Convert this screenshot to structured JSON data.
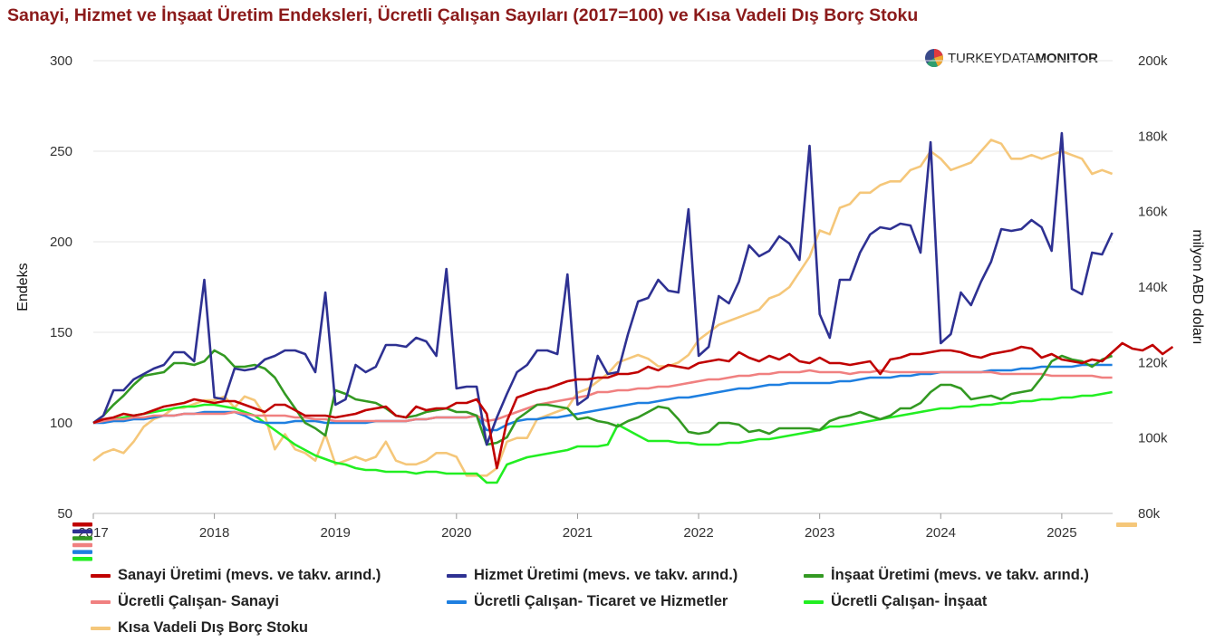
{
  "title": "Sanayi, Hizmet ve İnşaat Üretim Endeksleri, Ücretli Çalışan Sayıları (2017=100) ve Kısa Vadeli Dış Borç Stoku",
  "brand": {
    "part1": "TURKEYDATA",
    "part2": "MONITOR",
    "logo": "pie-logo-icon"
  },
  "chart_data": {
    "type": "line",
    "ylabel": "Endeks",
    "y2label": "milyon ABD doları",
    "ylim": [
      50,
      300
    ],
    "y2lim": [
      80000,
      200000
    ],
    "yticks": [
      "300",
      "250",
      "200",
      "150",
      "100",
      "50"
    ],
    "yticks_values": [
      300,
      250,
      200,
      150,
      100,
      50
    ],
    "y2ticks": [
      "200k",
      "180k",
      "160k",
      "140k",
      "120k",
      "100k",
      "80k"
    ],
    "y2ticks_values": [
      200000,
      180000,
      160000,
      140000,
      120000,
      100000,
      80000
    ],
    "xticks": [
      "2017",
      "2018",
      "2019",
      "2020",
      "2021",
      "2022",
      "2023",
      "2024",
      "2025"
    ],
    "xticks_values": [
      2017,
      2018,
      2019,
      2020,
      2021,
      2022,
      2023,
      2024,
      2025
    ],
    "xlim": [
      2017,
      2025.42
    ],
    "grid": true,
    "legend_position": "bottom",
    "series": [
      {
        "name": "Sanayi Üretimi (mevs. ve takv. arınd.)",
        "color": "#c00000",
        "axis": "left",
        "start": 2017,
        "step_months": 1,
        "values": [
          100,
          102,
          103,
          105,
          104,
          105,
          107,
          109,
          110,
          111,
          113,
          112,
          111,
          112,
          112,
          110,
          108,
          106,
          110,
          110,
          107,
          104,
          104,
          104,
          103,
          104,
          105,
          107,
          108,
          109,
          104,
          103,
          109,
          107,
          108,
          108,
          111,
          111,
          113,
          105,
          75,
          101,
          114,
          116,
          118,
          119,
          121,
          123,
          124,
          124,
          125,
          125,
          127,
          127,
          128,
          131,
          129,
          132,
          131,
          130,
          133,
          134,
          135,
          134,
          139,
          136,
          134,
          137,
          135,
          138,
          134,
          133,
          136,
          133,
          133,
          132,
          133,
          134,
          127,
          135,
          136,
          138,
          138,
          139,
          140,
          140,
          139,
          137,
          136,
          138,
          139,
          140,
          142,
          141,
          136,
          138,
          135,
          134,
          133,
          135,
          134,
          139,
          144,
          141,
          140,
          143,
          138,
          142
        ]
      },
      {
        "name": "Hizmet Üretimi (mevs. ve takv. arınd.)",
        "color": "#2e3192",
        "axis": "left",
        "start": 2017,
        "step_months": 1,
        "values": [
          100,
          104,
          118,
          118,
          124,
          127,
          130,
          132,
          139,
          139,
          134,
          179,
          114,
          113,
          130,
          129,
          130,
          135,
          137,
          140,
          140,
          138,
          128,
          172,
          110,
          113,
          132,
          128,
          131,
          143,
          143,
          142,
          147,
          145,
          137,
          185,
          119,
          120,
          120,
          88,
          103,
          116,
          128,
          132,
          140,
          140,
          138,
          182,
          110,
          114,
          137,
          127,
          128,
          149,
          167,
          169,
          179,
          173,
          172,
          218,
          137,
          142,
          170,
          166,
          178,
          198,
          192,
          195,
          203,
          199,
          190,
          253,
          160,
          147,
          179,
          179,
          194,
          204,
          208,
          207,
          210,
          209,
          194,
          255,
          144,
          149,
          172,
          165,
          178,
          189,
          207,
          206,
          207,
          212,
          208,
          195,
          260,
          174,
          171,
          194,
          193,
          205
        ]
      },
      {
        "name": "İnşaat Üretimi (mevs. ve takv. arınd.)",
        "color": "#339922",
        "axis": "left",
        "start": 2017,
        "step_months": 1,
        "values": [
          100,
          104,
          110,
          115,
          121,
          126,
          127,
          128,
          133,
          133,
          132,
          134,
          140,
          137,
          131,
          131,
          132,
          130,
          125,
          116,
          108,
          100,
          97,
          93,
          118,
          116,
          113,
          112,
          111,
          108,
          104,
          103,
          104,
          106,
          107,
          108,
          106,
          106,
          104,
          88,
          89,
          92,
          102,
          106,
          110,
          110,
          109,
          108,
          102,
          103,
          101,
          100,
          98,
          101,
          103,
          106,
          109,
          108,
          102,
          95,
          94,
          95,
          100,
          100,
          99,
          95,
          96,
          94,
          97,
          97,
          97,
          97,
          96,
          101,
          103,
          104,
          106,
          104,
          102,
          104,
          108,
          108,
          111,
          117,
          121,
          121,
          119,
          113,
          114,
          115,
          113,
          116,
          117,
          118,
          125,
          134,
          137,
          135,
          134,
          131,
          135,
          137
        ]
      },
      {
        "name": "Ücretli Çalışan- Sanayi",
        "color": "#f08080",
        "axis": "left",
        "start": 2017,
        "step_months": 1,
        "values": [
          100,
          101,
          102,
          102,
          103,
          103,
          104,
          104,
          104,
          105,
          105,
          105,
          105,
          105,
          106,
          105,
          104,
          104,
          104,
          104,
          103,
          103,
          102,
          102,
          101,
          101,
          101,
          101,
          101,
          101,
          101,
          101,
          102,
          102,
          103,
          103,
          103,
          103,
          104,
          101,
          102,
          104,
          106,
          108,
          110,
          111,
          112,
          113,
          114,
          115,
          117,
          117,
          118,
          118,
          119,
          119,
          120,
          120,
          121,
          122,
          123,
          124,
          124,
          125,
          126,
          126,
          127,
          127,
          128,
          128,
          128,
          129,
          128,
          128,
          128,
          127,
          128,
          128,
          129,
          128,
          128,
          128,
          128,
          128,
          128,
          128,
          128,
          128,
          128,
          128,
          127,
          127,
          127,
          127,
          127,
          126,
          126,
          126,
          126,
          126,
          125,
          125
        ]
      },
      {
        "name": "Ücretli Çalışan- Ticaret ve Hizmetler",
        "color": "#1e7fe0",
        "axis": "left",
        "start": 2017,
        "step_months": 1,
        "values": [
          100,
          100,
          101,
          101,
          102,
          102,
          103,
          104,
          104,
          105,
          105,
          106,
          106,
          106,
          106,
          104,
          101,
          100,
          100,
          100,
          101,
          101,
          101,
          100,
          100,
          100,
          100,
          100,
          101,
          101,
          101,
          101,
          102,
          102,
          103,
          103,
          103,
          103,
          104,
          96,
          96,
          99,
          101,
          102,
          102,
          103,
          103,
          104,
          105,
          106,
          107,
          108,
          109,
          110,
          111,
          111,
          112,
          113,
          114,
          114,
          115,
          116,
          117,
          118,
          119,
          119,
          120,
          121,
          121,
          122,
          122,
          122,
          122,
          122,
          123,
          123,
          124,
          125,
          125,
          125,
          126,
          126,
          127,
          127,
          128,
          128,
          128,
          128,
          128,
          129,
          129,
          129,
          130,
          130,
          131,
          131,
          131,
          131,
          132,
          132,
          132,
          132
        ]
      },
      {
        "name": "Ücretli Çalışan- İnşaat",
        "color": "#22ee22",
        "axis": "left",
        "start": 2017,
        "step_months": 1,
        "values": [
          100,
          101,
          102,
          103,
          104,
          105,
          106,
          107,
          108,
          109,
          109,
          110,
          110,
          109,
          108,
          106,
          104,
          100,
          96,
          92,
          88,
          85,
          82,
          80,
          78,
          77,
          75,
          74,
          74,
          73,
          73,
          73,
          72,
          73,
          73,
          72,
          72,
          72,
          72,
          67,
          67,
          77,
          79,
          81,
          82,
          83,
          84,
          85,
          87,
          87,
          87,
          88,
          99,
          96,
          93,
          90,
          90,
          90,
          89,
          89,
          88,
          88,
          88,
          89,
          89,
          90,
          91,
          91,
          92,
          93,
          94,
          95,
          96,
          98,
          98,
          99,
          100,
          101,
          102,
          103,
          104,
          105,
          106,
          107,
          108,
          108,
          109,
          109,
          110,
          110,
          111,
          111,
          112,
          112,
          113,
          113,
          114,
          114,
          115,
          115,
          116,
          117
        ]
      },
      {
        "name": "Kısa Vadeli Dış Borç Stoku",
        "color": "#f5c77a",
        "axis": "right",
        "start": 2017,
        "step_months": 1,
        "values": [
          94,
          96,
          97,
          96,
          99,
          103,
          105,
          106,
          108,
          108,
          109,
          110,
          110,
          111,
          108,
          111,
          110,
          106,
          97,
          101,
          97,
          96,
          94,
          101,
          93,
          94,
          95,
          94,
          95,
          99,
          94,
          93,
          93,
          94,
          96,
          96,
          95,
          90,
          90,
          90,
          92,
          99,
          100,
          100,
          105,
          106,
          107,
          108,
          112,
          113,
          115,
          117,
          120,
          121,
          122,
          121,
          119,
          119,
          120,
          122,
          126,
          128,
          130,
          131,
          132,
          133,
          134,
          137,
          138,
          140,
          144,
          148,
          155,
          154,
          161,
          162,
          165,
          165,
          167,
          168,
          168,
          171,
          172,
          176,
          174,
          171,
          172,
          173,
          176,
          179,
          178,
          174,
          174,
          175,
          174,
          175,
          176,
          175,
          174,
          170,
          171,
          170
        ]
      }
    ]
  },
  "legend": [
    {
      "label": "Sanayi Üretimi (mevs. ve takv. arınd.)",
      "color": "#c00000"
    },
    {
      "label": "Hizmet Üretimi (mevs. ve takv. arınd.)",
      "color": "#2e3192"
    },
    {
      "label": "İnşaat Üretimi (mevs. ve takv. arınd.)",
      "color": "#339922"
    },
    {
      "label": "Ücretli Çalışan- Sanayi",
      "color": "#f08080"
    },
    {
      "label": "Ücretli Çalışan- Ticaret ve Hizmetler",
      "color": "#1e7fe0"
    },
    {
      "label": "Ücretli Çalışan- İnşaat",
      "color": "#22ee22"
    },
    {
      "label": "Kısa Vadeli Dış Borç Stoku",
      "color": "#f5c77a"
    }
  ]
}
